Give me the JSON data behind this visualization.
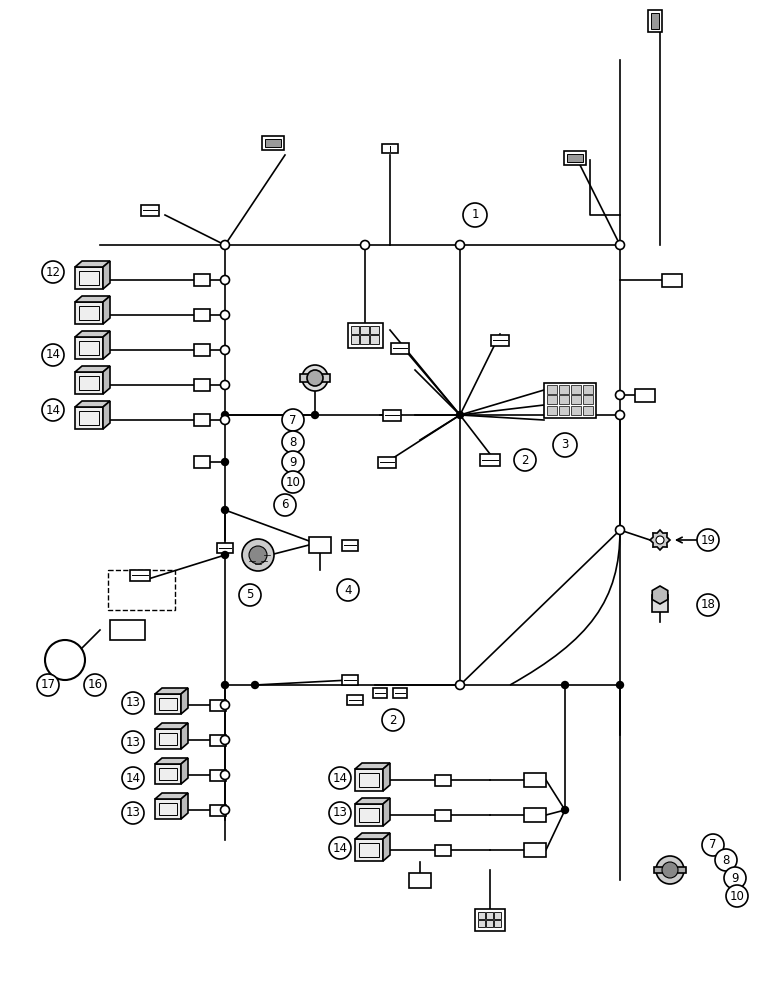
{
  "bg_color": "#ffffff",
  "lc": "#000000",
  "lw": 1.2,
  "node_r": 4.0,
  "circ_r": 11,
  "fig_w": 7.8,
  "fig_h": 10.0
}
